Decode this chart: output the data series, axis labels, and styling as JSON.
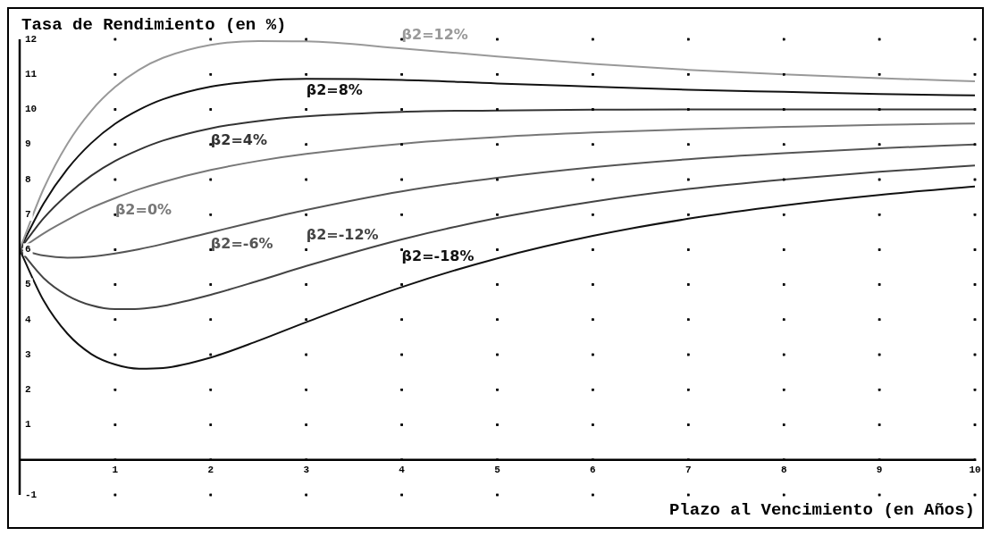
{
  "chart_data": {
    "type": "line",
    "xlabel": "Plazo al Vencimiento (en Años)",
    "ylabel": "Tasa de Rendimiento (en %)",
    "x": [
      0,
      0.25,
      0.5,
      0.75,
      1,
      1.25,
      1.5,
      2,
      2.5,
      3,
      4,
      5,
      6,
      7,
      8,
      9,
      10
    ],
    "series": [
      {
        "name": "β2=12%",
        "color": "#999999",
        "values": [
          6,
          7.73,
          9.02,
          9.96,
          10.64,
          11.13,
          11.47,
          11.84,
          11.95,
          11.94,
          11.74,
          11.51,
          11.3,
          11.13,
          11,
          10.89,
          10.8
        ]
      },
      {
        "name": "β2=8%",
        "color": "#111111",
        "values": [
          6,
          7.31,
          8.3,
          9.04,
          9.59,
          9.99,
          10.29,
          10.65,
          10.81,
          10.87,
          10.84,
          10.74,
          10.65,
          10.56,
          10.5,
          10.44,
          10.4
        ]
      },
      {
        "name": "β2=4%",
        "color": "#333333",
        "values": [
          6,
          6.89,
          7.57,
          8.11,
          8.53,
          8.85,
          9.11,
          9.46,
          9.67,
          9.8,
          9.93,
          9.97,
          9.99,
          10,
          10,
          10,
          10
        ]
      },
      {
        "name": "β2=0%",
        "color": "#777777",
        "values": [
          6,
          6.46,
          6.85,
          7.19,
          7.47,
          7.72,
          7.93,
          8.27,
          8.53,
          8.73,
          9.02,
          9.21,
          9.34,
          9.43,
          9.5,
          9.56,
          9.6
        ]
      },
      {
        "name": "β2=-6%",
        "color": "#555555",
        "values": [
          6,
          5.83,
          5.77,
          5.8,
          5.89,
          6.01,
          6.16,
          6.49,
          6.82,
          7.13,
          7.66,
          8.05,
          8.35,
          8.58,
          8.75,
          8.89,
          9
        ]
      },
      {
        "name": "β2=-12%",
        "color": "#444444",
        "values": [
          6,
          5.19,
          4.69,
          4.41,
          4.3,
          4.31,
          4.39,
          4.71,
          5.11,
          5.53,
          6.29,
          6.9,
          7.37,
          7.73,
          8,
          8.22,
          8.4
        ]
      },
      {
        "name": "β2=-18%",
        "color": "#111111",
        "values": [
          6,
          4.55,
          3.6,
          3.02,
          2.72,
          2.6,
          2.62,
          2.92,
          3.4,
          3.93,
          4.93,
          5.75,
          6.39,
          6.88,
          7.26,
          7.56,
          7.8
        ]
      }
    ],
    "xlim": [
      0,
      10
    ],
    "xticks": [
      1,
      2,
      3,
      4,
      5,
      6,
      7,
      8,
      9,
      10
    ],
    "ylim": [
      -1,
      12
    ],
    "yticks": [
      -1,
      {
        "value": 0,
        "label": null
      },
      1,
      2,
      3,
      4,
      5,
      6,
      7,
      8,
      9,
      10,
      11,
      12
    ],
    "grid": true,
    "legend": false,
    "marker": "none",
    "line_style": "solid"
  }
}
